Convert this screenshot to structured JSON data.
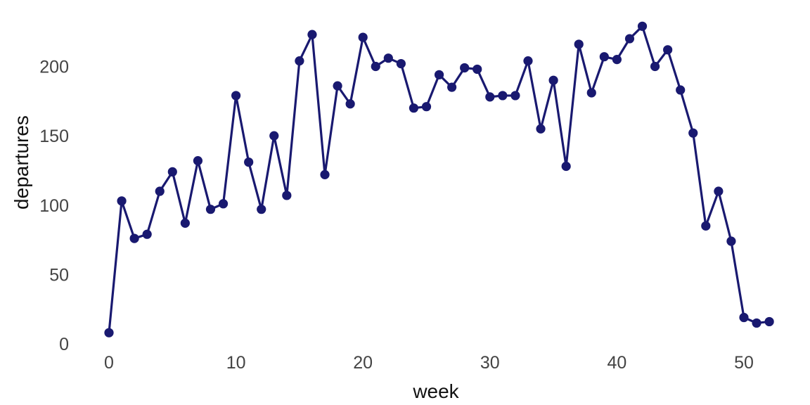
{
  "chart_data": {
    "type": "line",
    "title": "",
    "xlabel": "week",
    "ylabel": "departures",
    "series_name": "departures",
    "x": [
      0,
      1,
      2,
      3,
      4,
      5,
      6,
      7,
      8,
      9,
      10,
      11,
      12,
      13,
      14,
      15,
      16,
      17,
      18,
      19,
      20,
      21,
      22,
      23,
      24,
      25,
      26,
      27,
      28,
      29,
      30,
      31,
      32,
      33,
      34,
      35,
      36,
      37,
      38,
      39,
      40,
      41,
      42,
      43,
      44,
      45,
      46,
      47,
      48,
      49,
      50,
      51,
      52
    ],
    "values": [
      8,
      103,
      76,
      79,
      110,
      124,
      87,
      132,
      97,
      101,
      179,
      131,
      97,
      150,
      107,
      204,
      223,
      122,
      186,
      173,
      221,
      200,
      206,
      202,
      170,
      171,
      194,
      185,
      199,
      198,
      178,
      179,
      179,
      204,
      155,
      190,
      128,
      216,
      181,
      207,
      205,
      220,
      229,
      200,
      212,
      183,
      152,
      85,
      110,
      74,
      19,
      15,
      16
    ],
    "xticks": [
      0,
      10,
      20,
      30,
      40,
      50
    ],
    "yticks": [
      0,
      50,
      100,
      150,
      200
    ],
    "xlim": [
      -3,
      55.5
    ],
    "ylim": [
      -5,
      235
    ],
    "grid": false,
    "legend": "none",
    "marker": "circle",
    "line_color": "#191970",
    "marker_color": "#191970",
    "tick_label_color": "#444444",
    "axis_label_color": "#111111",
    "background_color": "#ffffff"
  }
}
